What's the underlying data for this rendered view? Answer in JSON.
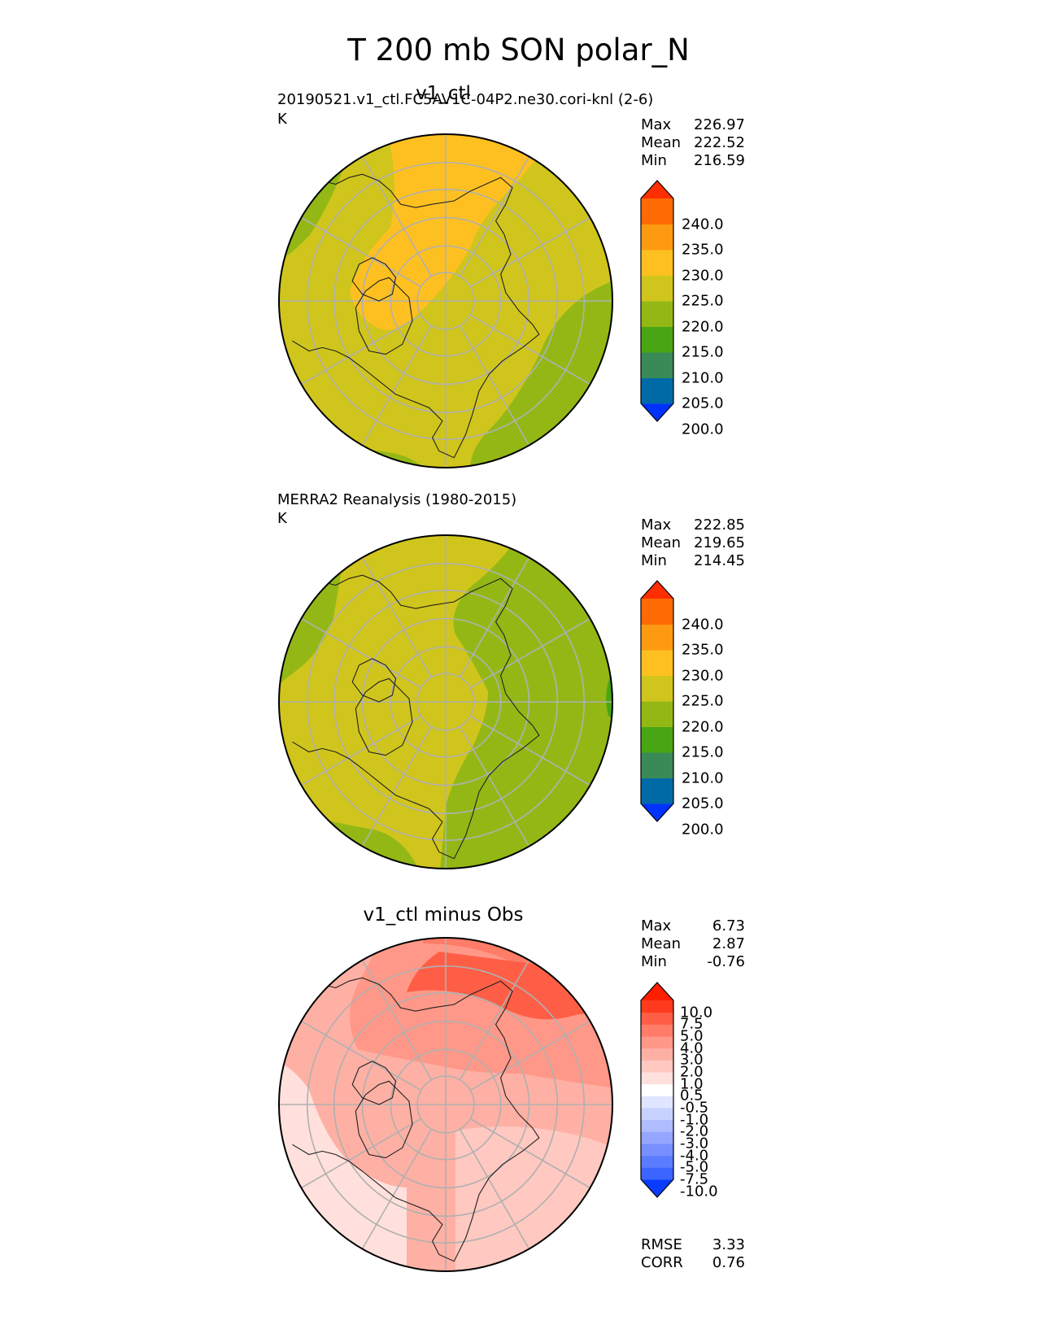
{
  "figure": {
    "title": "T 200 mb SON polar_N",
    "panels": [
      {
        "title": "v1_ctl",
        "left_label": "20190521.v1_ctl.FC5AV1C-04P2.ne30.cori-knl (2-6)",
        "units": "K",
        "stats": [
          {
            "label": "Max",
            "value": "226.97"
          },
          {
            "label": "Mean",
            "value": "222.52"
          },
          {
            "label": "Min",
            "value": "216.59"
          }
        ],
        "colorbar": {
          "ticks": [
            "240.0",
            "235.0",
            "230.0",
            "225.0",
            "220.0",
            "215.0",
            "210.0",
            "205.0",
            "200.0"
          ],
          "colors": [
            "#0032ff",
            "#006aa7",
            "#3a8a58",
            "#48a614",
            "#93b816",
            "#d0c51c",
            "#fec021",
            "#fe9a11",
            "#fe6a04",
            "#fe2e00"
          ]
        }
      },
      {
        "title": "",
        "left_label": "MERRA2 Reanalysis (1980-2015)",
        "units": "K",
        "stats": [
          {
            "label": "Max",
            "value": "222.85"
          },
          {
            "label": "Mean",
            "value": "219.65"
          },
          {
            "label": "Min",
            "value": "214.45"
          }
        ],
        "colorbar": {
          "ticks": [
            "240.0",
            "235.0",
            "230.0",
            "225.0",
            "220.0",
            "215.0",
            "210.0",
            "205.0",
            "200.0"
          ],
          "colors": [
            "#0032ff",
            "#006aa7",
            "#3a8a58",
            "#48a614",
            "#93b816",
            "#d0c51c",
            "#fec021",
            "#fe9a11",
            "#fe6a04",
            "#fe2e00"
          ]
        }
      },
      {
        "title": "v1_ctl minus Obs",
        "left_label": "",
        "units": "",
        "stats": [
          {
            "label": "Max",
            "value": "6.73"
          },
          {
            "label": "Mean",
            "value": "2.87"
          },
          {
            "label": "Min",
            "value": "-0.76"
          }
        ],
        "metrics": [
          {
            "label": "RMSE",
            "value": "3.33"
          },
          {
            "label": "CORR",
            "value": "0.76"
          }
        ],
        "colorbar": {
          "ticks": [
            "10.0",
            "7.5",
            "5.0",
            "4.0",
            "3.0",
            "2.0",
            "1.0",
            "0.5",
            "-0.5",
            "-1.0",
            "-2.0",
            "-3.0",
            "-4.0",
            "-5.0",
            "-7.5",
            "-10.0"
          ],
          "colors": [
            "#0a3cff",
            "#3c64ff",
            "#5a7cff",
            "#7890ff",
            "#94a6ff",
            "#afbcff",
            "#c8d2ff",
            "#e0e6ff",
            "#ffffff",
            "#ffe0dc",
            "#ffc8c0",
            "#ffb0a4",
            "#ff9888",
            "#ff7c68",
            "#ff5e46",
            "#ff3a1e",
            "#ff1e00"
          ]
        }
      }
    ]
  }
}
